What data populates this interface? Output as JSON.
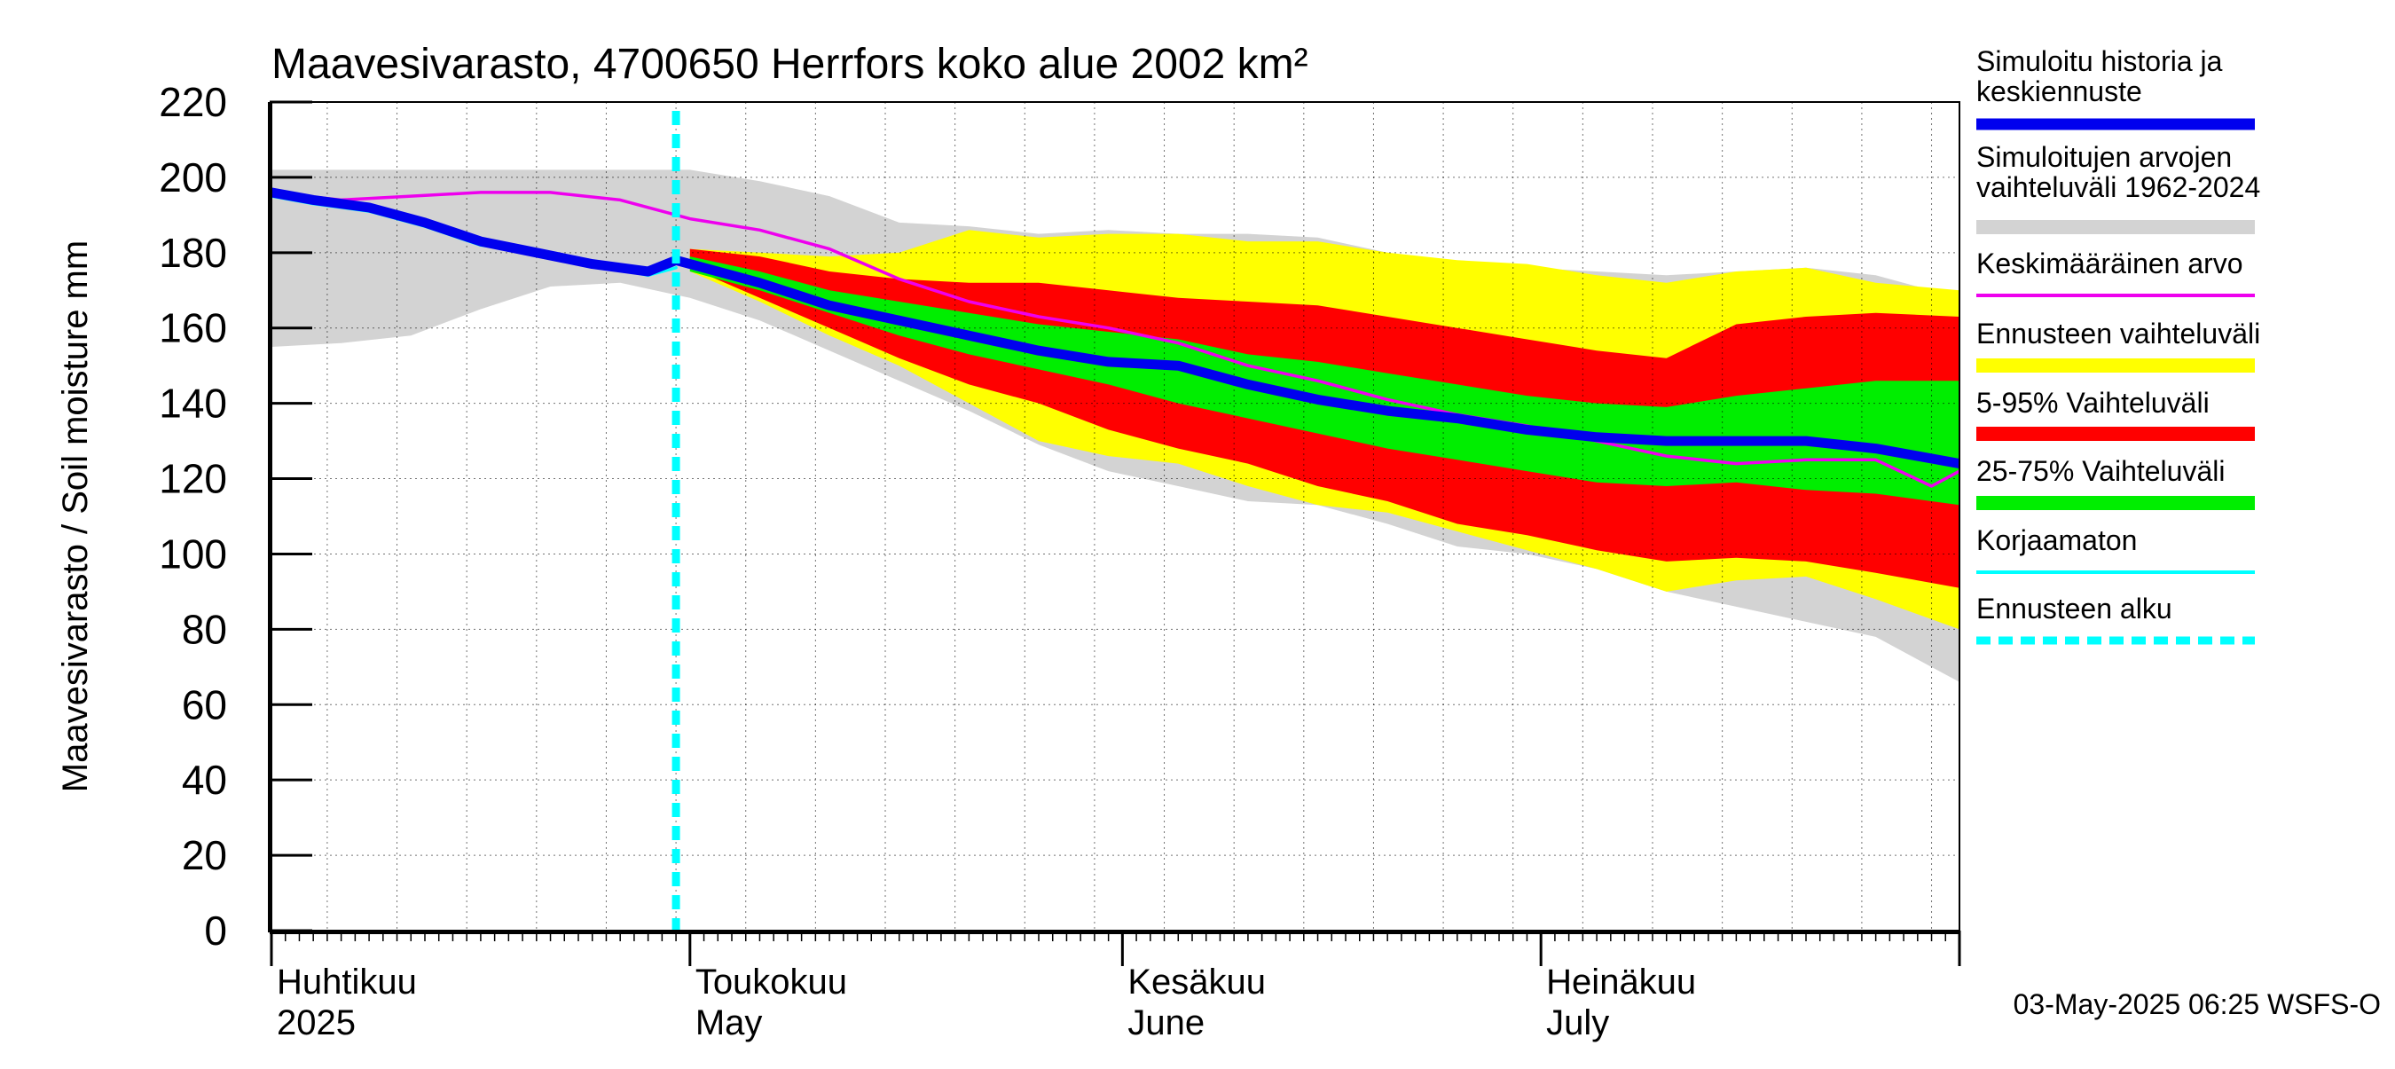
{
  "chart_data": {
    "type": "area",
    "title": "Maavesivarasto, 4700650 Herrfors koko alue 2002 km²",
    "ylabel": "Maavesivarasto / Soil moisture   mm",
    "ylim": [
      0,
      220
    ],
    "yticks": [
      0,
      20,
      40,
      60,
      80,
      100,
      120,
      140,
      160,
      180,
      200,
      220
    ],
    "xlim": [
      "2025-04-01",
      "2025-07-31"
    ],
    "grid": true,
    "legend_position": "right",
    "forecast_start": "2025-04-30",
    "timestamp": "03-May-2025 06:25 WSFS-O",
    "month_labels": [
      {
        "fi": "Huhtikuu",
        "en": "2025",
        "start": "2025-04-01"
      },
      {
        "fi": "Toukokuu",
        "en": "May",
        "start": "2025-05-01"
      },
      {
        "fi": "Kesäkuu",
        "en": "June",
        "start": "2025-06-01"
      },
      {
        "fi": "Heinäkuu",
        "en": "July",
        "start": "2025-07-01"
      }
    ],
    "legend": [
      {
        "label": "Simuloitu historia ja keskiennuste",
        "color": "#0000ee",
        "style": "thick"
      },
      {
        "label": "Simuloitujen arvojen vaihteluväli 1962-2024",
        "color": "#d3d3d3",
        "style": "band"
      },
      {
        "label": "Keskimääräinen arvo",
        "color": "#ee00ee",
        "style": "line"
      },
      {
        "label": "Ennusteen vaihteluväli",
        "color": "#ffff00",
        "style": "band"
      },
      {
        "label": "5-95% Vaihteluväli",
        "color": "#ff0000",
        "style": "band"
      },
      {
        "label": "25-75% Vaihteluväli",
        "color": "#00ee00",
        "style": "band"
      },
      {
        "label": "Korjaamaton",
        "color": "#00ffff",
        "style": "line"
      },
      {
        "label": "Ennusteen alku",
        "color": "#00ffff",
        "style": "dashed"
      }
    ],
    "series": [
      {
        "name": "Simuloitujen arvojen vaihteluväli 1962-2024",
        "kind": "band",
        "color": "#d3d3d3",
        "x": [
          "2025-04-01",
          "2025-04-06",
          "2025-04-11",
          "2025-04-16",
          "2025-04-21",
          "2025-04-26",
          "2025-05-01",
          "2025-05-06",
          "2025-05-11",
          "2025-05-16",
          "2025-05-21",
          "2025-05-26",
          "2025-05-31",
          "2025-06-05",
          "2025-06-10",
          "2025-06-15",
          "2025-06-20",
          "2025-06-25",
          "2025-06-30",
          "2025-07-05",
          "2025-07-10",
          "2025-07-15",
          "2025-07-20",
          "2025-07-25",
          "2025-07-31"
        ],
        "low": [
          155,
          156,
          158,
          165,
          171,
          172,
          168,
          162,
          154,
          146,
          138,
          129,
          122,
          118,
          114,
          113,
          108,
          102,
          100,
          96,
          90,
          86,
          82,
          78,
          66
        ],
        "high": [
          202,
          202,
          202,
          202,
          202,
          202,
          202,
          199,
          195,
          188,
          187,
          185,
          186,
          185,
          185,
          184,
          180,
          176,
          176,
          175,
          174,
          175,
          176,
          174,
          168
        ]
      },
      {
        "name": "Ennusteen vaihteluväli",
        "kind": "band",
        "color": "#ffff00",
        "x": [
          "2025-05-01",
          "2025-05-06",
          "2025-05-11",
          "2025-05-16",
          "2025-05-21",
          "2025-05-26",
          "2025-05-31",
          "2025-06-05",
          "2025-06-10",
          "2025-06-15",
          "2025-06-20",
          "2025-06-25",
          "2025-06-30",
          "2025-07-05",
          "2025-07-10",
          "2025-07-15",
          "2025-07-20",
          "2025-07-25",
          "2025-07-31"
        ],
        "low": [
          175,
          167,
          158,
          150,
          140,
          130,
          126,
          124,
          118,
          113,
          111,
          106,
          101,
          96,
          90,
          93,
          94,
          88,
          80
        ],
        "high": [
          181,
          180,
          179,
          180,
          186,
          184,
          185,
          185,
          183,
          183,
          180,
          178,
          177,
          174,
          172,
          175,
          176,
          172,
          170
        ]
      },
      {
        "name": "5-95% Vaihteluväli",
        "kind": "band",
        "color": "#ff0000",
        "x": [
          "2025-05-01",
          "2025-05-06",
          "2025-05-11",
          "2025-05-16",
          "2025-05-21",
          "2025-05-26",
          "2025-05-31",
          "2025-06-05",
          "2025-06-10",
          "2025-06-15",
          "2025-06-20",
          "2025-06-25",
          "2025-06-30",
          "2025-07-05",
          "2025-07-10",
          "2025-07-15",
          "2025-07-20",
          "2025-07-25",
          "2025-07-31"
        ],
        "low": [
          176,
          168,
          160,
          152,
          145,
          140,
          133,
          128,
          124,
          118,
          114,
          108,
          105,
          101,
          98,
          99,
          98,
          95,
          91
        ],
        "high": [
          181,
          179,
          175,
          173,
          172,
          172,
          170,
          168,
          167,
          166,
          163,
          160,
          157,
          154,
          152,
          161,
          163,
          164,
          163
        ]
      },
      {
        "name": "25-75% Vaihteluväli",
        "kind": "band",
        "color": "#00ee00",
        "x": [
          "2025-05-01",
          "2025-05-06",
          "2025-05-11",
          "2025-05-16",
          "2025-05-21",
          "2025-05-26",
          "2025-05-31",
          "2025-06-05",
          "2025-06-10",
          "2025-06-15",
          "2025-06-20",
          "2025-06-25",
          "2025-06-30",
          "2025-07-05",
          "2025-07-10",
          "2025-07-15",
          "2025-07-20",
          "2025-07-25",
          "2025-07-31"
        ],
        "low": [
          175,
          170,
          164,
          158,
          153,
          149,
          145,
          140,
          136,
          132,
          128,
          125,
          122,
          119,
          118,
          119,
          117,
          116,
          113
        ],
        "high": [
          179,
          175,
          170,
          167,
          164,
          161,
          159,
          157,
          153,
          151,
          148,
          145,
          142,
          140,
          139,
          142,
          144,
          146,
          146
        ]
      },
      {
        "name": "Keskimääräinen arvo",
        "kind": "line",
        "color": "#ee00ee",
        "x": [
          "2025-04-01",
          "2025-04-06",
          "2025-04-11",
          "2025-04-16",
          "2025-04-21",
          "2025-04-26",
          "2025-05-01",
          "2025-05-06",
          "2025-05-11",
          "2025-05-16",
          "2025-05-21",
          "2025-05-26",
          "2025-05-31",
          "2025-06-05",
          "2025-06-10",
          "2025-06-15",
          "2025-06-20",
          "2025-06-25",
          "2025-06-30",
          "2025-07-05",
          "2025-07-10",
          "2025-07-15",
          "2025-07-20",
          "2025-07-25",
          "2025-07-29",
          "2025-07-31"
        ],
        "y": [
          196,
          194,
          195,
          196,
          196,
          194,
          189,
          186,
          181,
          173,
          167,
          163,
          160,
          156,
          150,
          146,
          141,
          137,
          134,
          130,
          126,
          124,
          125,
          125,
          118,
          122
        ]
      },
      {
        "name": "Korjaamaton",
        "kind": "line",
        "color": "#00ffff",
        "x": [
          "2025-04-01",
          "2025-04-04",
          "2025-04-08",
          "2025-04-12",
          "2025-04-16",
          "2025-04-20",
          "2025-04-24",
          "2025-04-28",
          "2025-04-30"
        ],
        "y": [
          195,
          193,
          191,
          187,
          182,
          180,
          177,
          174,
          176
        ]
      },
      {
        "name": "Simuloitu historia ja keskiennuste",
        "kind": "line",
        "color": "#0000ee",
        "x": [
          "2025-04-01",
          "2025-04-04",
          "2025-04-08",
          "2025-04-12",
          "2025-04-16",
          "2025-04-20",
          "2025-04-24",
          "2025-04-28",
          "2025-04-30",
          "2025-05-01",
          "2025-05-06",
          "2025-05-11",
          "2025-05-16",
          "2025-05-21",
          "2025-05-26",
          "2025-05-31",
          "2025-06-05",
          "2025-06-10",
          "2025-06-15",
          "2025-06-20",
          "2025-06-25",
          "2025-06-30",
          "2025-07-05",
          "2025-07-10",
          "2025-07-15",
          "2025-07-20",
          "2025-07-25",
          "2025-07-28",
          "2025-07-31"
        ],
        "y": [
          196,
          194,
          192,
          188,
          183,
          180,
          177,
          175,
          178,
          177,
          172,
          166,
          162,
          158,
          154,
          151,
          150,
          145,
          141,
          138,
          136,
          133,
          131,
          130,
          130,
          130,
          128,
          126,
          124
        ]
      }
    ]
  }
}
